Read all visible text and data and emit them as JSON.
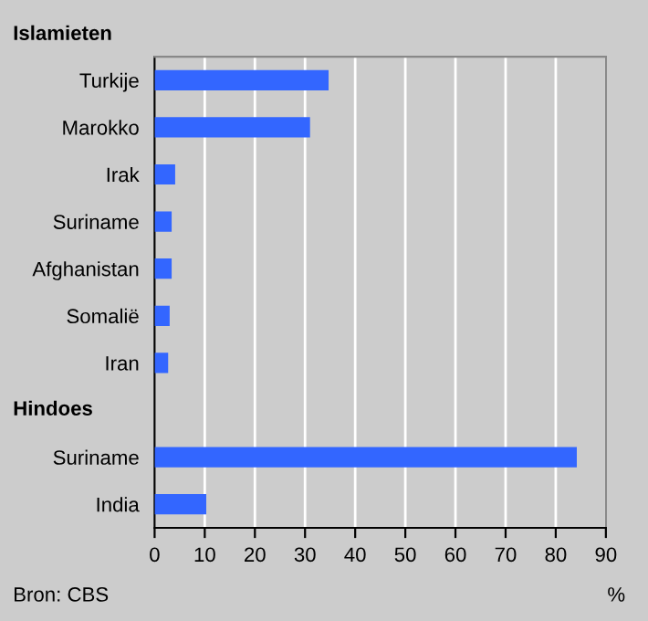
{
  "chart_data": {
    "type": "bar",
    "orientation": "horizontal",
    "categories": [
      "Turkije",
      "Marokko",
      "Irak",
      "Suriname",
      "Afghanistan",
      "Somalië",
      "Iran",
      null,
      "Suriname",
      "India"
    ],
    "values": [
      34.7,
      31.0,
      4.1,
      3.4,
      3.4,
      3.0,
      2.7,
      null,
      84.2,
      10.3
    ],
    "color": "#3366ff",
    "xlim": [
      0,
      90
    ],
    "xticks": [
      0,
      10,
      20,
      30,
      40,
      50,
      60,
      70,
      80,
      90
    ],
    "xlabel": "%",
    "grid": "x",
    "annotations": [
      "Islamieten",
      "Hindoes",
      "Bron: CBS"
    ]
  }
}
